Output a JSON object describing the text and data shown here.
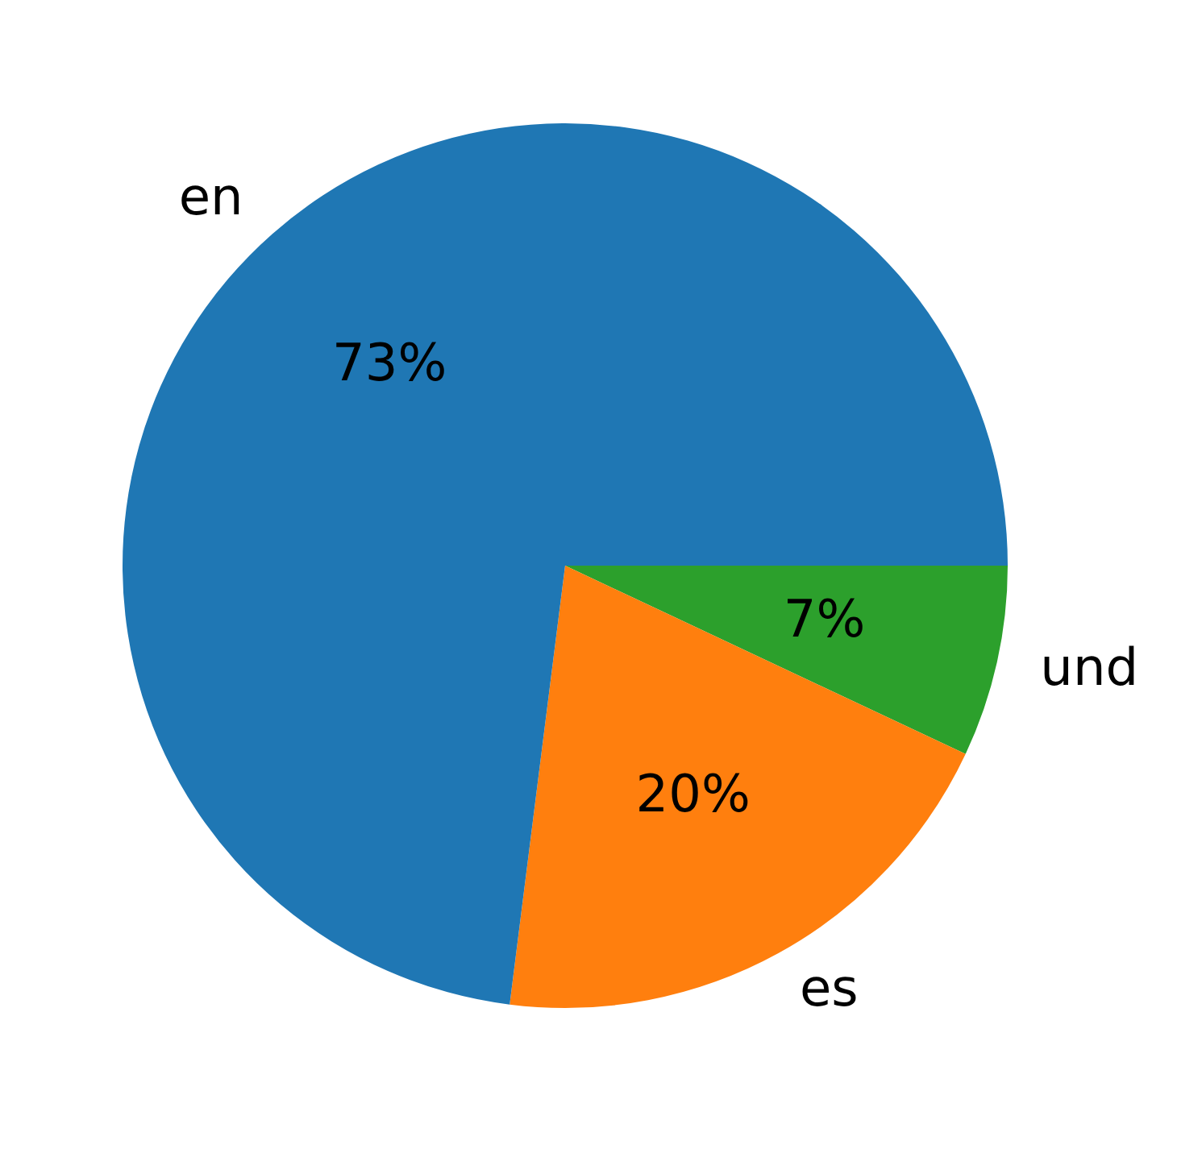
{
  "chart_data": {
    "type": "pie",
    "categories": [
      "en",
      "es",
      "und"
    ],
    "values": [
      73,
      20,
      7
    ],
    "value_labels": [
      "73%",
      "20%",
      "7%"
    ],
    "colors": [
      "#1f77b4",
      "#ff7f0e",
      "#2ca02c"
    ],
    "legend": false
  }
}
